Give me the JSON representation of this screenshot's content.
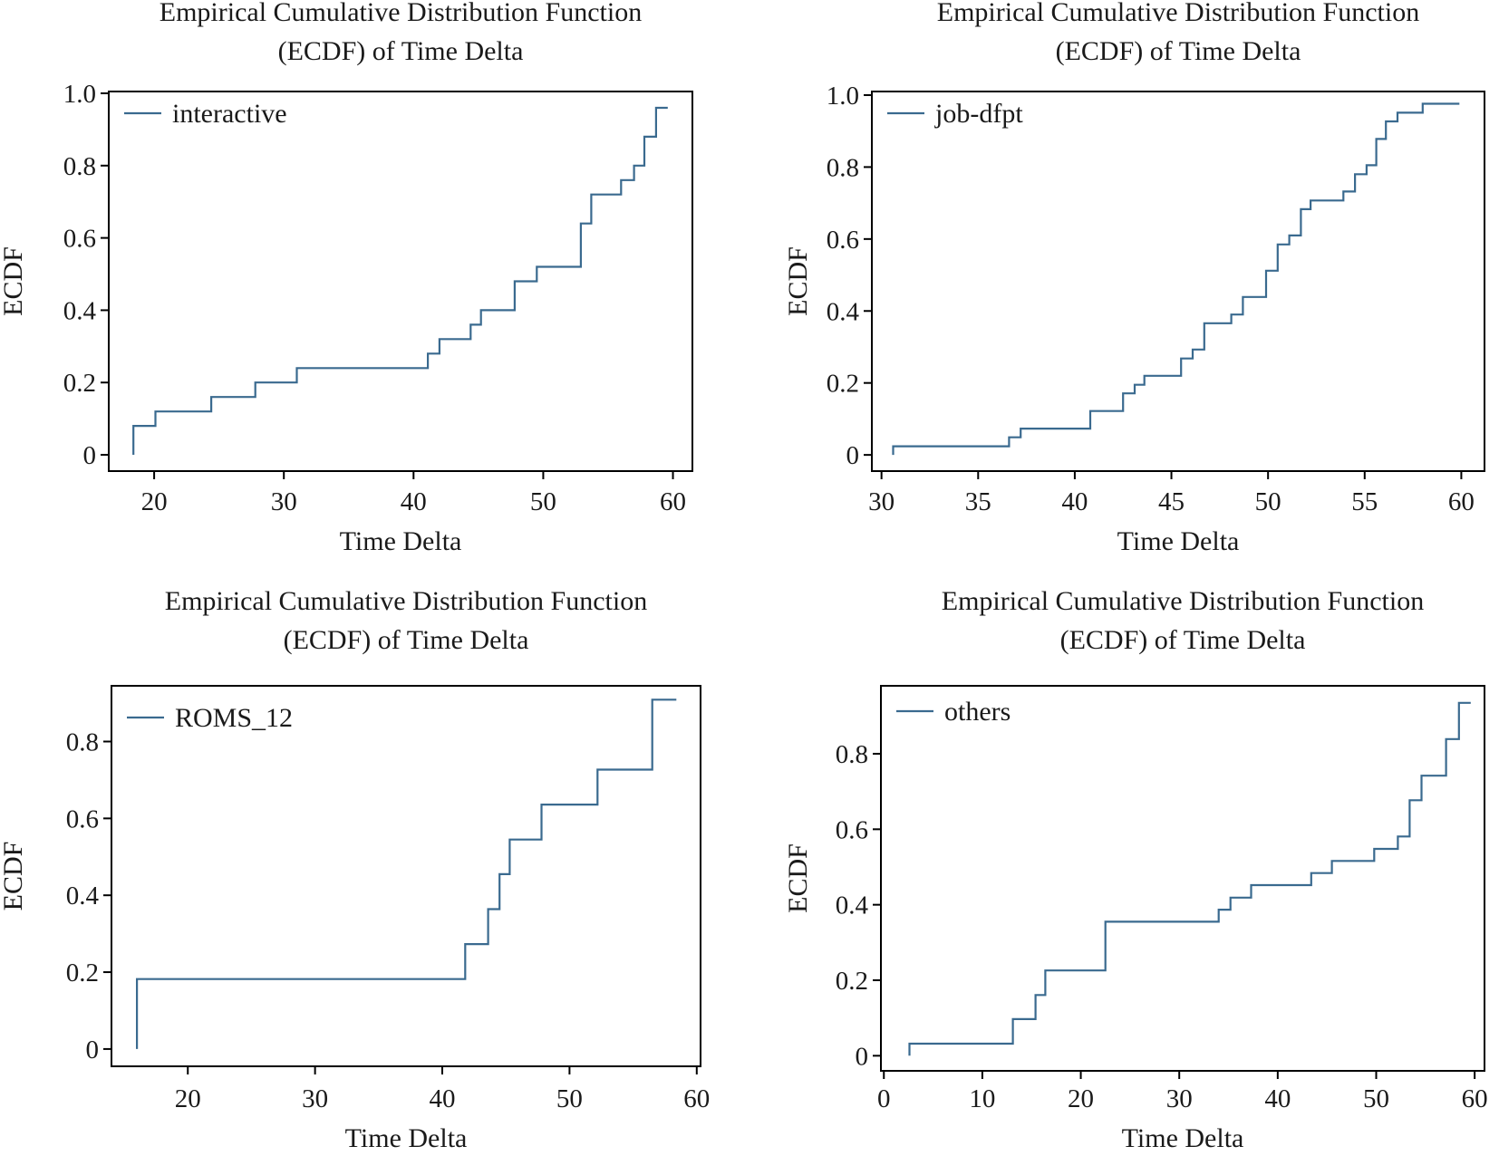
{
  "colors": {
    "line": "#3a6a8f",
    "axes": "#000000",
    "background": "#ffffff"
  },
  "chart_data": [
    {
      "type": "line",
      "step": "post",
      "title": "Empirical Cumulative Distribution Function\n(ECDF) of Time Delta",
      "xlabel": "Time Delta",
      "ylabel": "ECDF",
      "xlim": [
        16.5,
        61.5
      ],
      "ylim": [
        -0.045,
        1.005
      ],
      "xticks": [
        20,
        30,
        40,
        50,
        60
      ],
      "xtick_labels": [
        "20",
        "30",
        "40",
        "50",
        "60"
      ],
      "yticks": [
        0,
        0.2,
        0.4,
        0.6,
        0.8,
        1.0
      ],
      "ytick_labels": [
        "0",
        "0.2",
        "0.4",
        "0.6",
        "0.8",
        "1.0"
      ],
      "legend": "top-left",
      "grid": false,
      "series": [
        {
          "name": "interactive",
          "x": [
            18.4,
            18.4,
            20.1,
            24.4,
            27.8,
            31.0,
            41.1,
            42.0,
            44.4,
            45.2,
            47.8,
            49.5,
            52.9,
            53.7,
            56.0,
            57.0,
            57.8,
            58.7,
            59.6
          ],
          "y": [
            0,
            0.08,
            0.12,
            0.16,
            0.2,
            0.24,
            0.28,
            0.32,
            0.36,
            0.4,
            0.48,
            0.52,
            0.64,
            0.72,
            0.76,
            0.8,
            0.88,
            0.96,
            0.96
          ]
        }
      ]
    },
    {
      "type": "line",
      "step": "post",
      "title": "Empirical Cumulative Distribution Function\n(ECDF) of Time Delta",
      "xlabel": "Time Delta",
      "ylabel": "ECDF",
      "xlim": [
        29.5,
        61.2
      ],
      "ylim": [
        -0.045,
        1.01
      ],
      "xticks": [
        30,
        35,
        40,
        45,
        50,
        55,
        60
      ],
      "xtick_labels": [
        "30",
        "35",
        "40",
        "45",
        "50",
        "55",
        "60"
      ],
      "yticks": [
        0,
        0.2,
        0.4,
        0.6,
        0.8,
        1.0
      ],
      "ytick_labels": [
        "0",
        "0.2",
        "0.4",
        "0.6",
        "0.8",
        "1.0"
      ],
      "legend": "top-left",
      "grid": false,
      "series": [
        {
          "name": "job-dfpt",
          "x": [
            30.6,
            30.6,
            36.6,
            37.2,
            40.8,
            42.5,
            43.1,
            43.6,
            45.5,
            46.1,
            46.7,
            48.1,
            48.7,
            49.9,
            50.5,
            51.1,
            51.7,
            52.2,
            53.9,
            54.5,
            55.1,
            55.6,
            56.1,
            56.7,
            58.0,
            59.9
          ],
          "y": [
            0,
            0.024,
            0.049,
            0.073,
            0.122,
            0.171,
            0.195,
            0.22,
            0.268,
            0.293,
            0.366,
            0.39,
            0.439,
            0.512,
            0.585,
            0.61,
            0.683,
            0.707,
            0.732,
            0.78,
            0.805,
            0.878,
            0.927,
            0.951,
            0.976,
            0.976
          ]
        }
      ]
    },
    {
      "type": "line",
      "step": "post",
      "title": "Empirical Cumulative Distribution Function\n(ECDF) of Time Delta",
      "xlabel": "Time Delta",
      "ylabel": "ECDF",
      "xlim": [
        14.0,
        60.3
      ],
      "ylim": [
        -0.045,
        0.945
      ],
      "xticks": [
        20,
        30,
        40,
        50,
        60
      ],
      "xtick_labels": [
        "20",
        "30",
        "40",
        "50",
        "60"
      ],
      "yticks": [
        0,
        0.2,
        0.4,
        0.6,
        0.8
      ],
      "ytick_labels": [
        "0",
        "0.2",
        "0.4",
        "0.6",
        "0.8"
      ],
      "legend": "top-left",
      "grid": false,
      "series": [
        {
          "name": "ROMS_12",
          "x": [
            16.0,
            16.0,
            41.8,
            43.6,
            44.5,
            45.3,
            47.8,
            52.2,
            56.5,
            58.4
          ],
          "y": [
            0,
            0.182,
            0.273,
            0.364,
            0.455,
            0.545,
            0.636,
            0.727,
            0.909,
            0.909
          ]
        }
      ]
    },
    {
      "type": "line",
      "step": "post",
      "title": "Empirical Cumulative Distribution Function\n(ECDF) of Time Delta",
      "xlabel": "Time Delta",
      "ylabel": "ECDF",
      "xlim": [
        -0.3,
        61.0
      ],
      "ylim": [
        -0.04,
        0.98
      ],
      "xticks": [
        0,
        10,
        20,
        30,
        40,
        50,
        60
      ],
      "xtick_labels": [
        "0",
        "10",
        "20",
        "30",
        "40",
        "50",
        "60"
      ],
      "yticks": [
        0,
        0.2,
        0.4,
        0.6,
        0.8
      ],
      "ytick_labels": [
        "0",
        "0.2",
        "0.4",
        "0.6",
        "0.8"
      ],
      "legend": "top-left",
      "grid": false,
      "series": [
        {
          "name": "others",
          "x": [
            2.6,
            2.6,
            13.1,
            15.4,
            16.4,
            22.5,
            34.0,
            35.2,
            37.3,
            43.4,
            45.5,
            49.8,
            52.2,
            53.4,
            54.6,
            57.1,
            58.4,
            59.6
          ],
          "y": [
            0,
            0.032,
            0.097,
            0.161,
            0.226,
            0.355,
            0.387,
            0.419,
            0.452,
            0.484,
            0.516,
            0.548,
            0.581,
            0.677,
            0.742,
            0.839,
            0.935,
            0.935
          ]
        }
      ]
    }
  ]
}
